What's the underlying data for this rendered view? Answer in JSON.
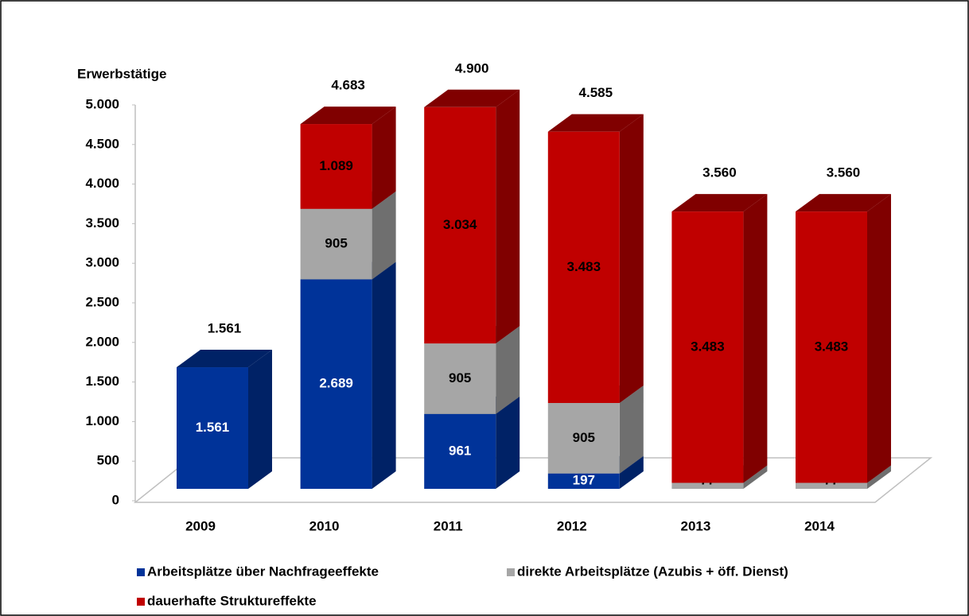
{
  "chart_data": {
    "type": "bar3d_stacked",
    "y_label": "Erwerbstätige",
    "categories": [
      "2009",
      "2010",
      "2011",
      "2012",
      "2013",
      "2014"
    ],
    "series": [
      {
        "name": "Arbeitsplätze über Nachfrageeffekte",
        "color": "#003399",
        "side": "#002266",
        "label_color": "#ffffff",
        "values": [
          1561,
          2689,
          961,
          197,
          null,
          null
        ],
        "value_labels": [
          "1.561",
          "2.689",
          "961",
          "197",
          null,
          null
        ]
      },
      {
        "name": "direkte Arbeitsplätze (Azubis + öff. Dienst)",
        "color": "#a6a6a6",
        "side": "#6f6f6f",
        "label_color": "#000000",
        "values": [
          null,
          905,
          905,
          905,
          77,
          77
        ],
        "value_labels": [
          null,
          "905",
          "905",
          "905",
          "77",
          "77"
        ]
      },
      {
        "name": "dauerhafte Struktureffekte",
        "color": "#c00000",
        "side": "#800000",
        "label_color": "#000000",
        "values": [
          null,
          1089,
          3034,
          3483,
          3483,
          3483
        ],
        "value_labels": [
          null,
          "1.089",
          "3.034",
          "3.483",
          "3.483",
          "3.483"
        ]
      }
    ],
    "totals": {
      "values": [
        1561,
        4683,
        4900,
        4585,
        3560,
        3560
      ],
      "value_labels": [
        "1.561",
        "4.683",
        "4.900",
        "4.585",
        "3.560",
        "3.560"
      ]
    },
    "ylim": [
      0,
      5000
    ],
    "yticks": [
      0,
      500,
      {
        "value": 1000,
        "label": "1.000"
      },
      {
        "value": 1500,
        "label": "1.500"
      },
      {
        "value": 2000,
        "label": "2.000"
      },
      {
        "value": 2500,
        "label": "2.500"
      },
      {
        "value": 3000,
        "label": "3.000"
      },
      {
        "value": 3500,
        "label": "3.500"
      },
      {
        "value": 4000,
        "label": "4.000"
      },
      {
        "value": 4500,
        "label": "4.500"
      },
      {
        "value": 5000,
        "label": "5.000"
      }
    ],
    "legend": "bottom"
  }
}
